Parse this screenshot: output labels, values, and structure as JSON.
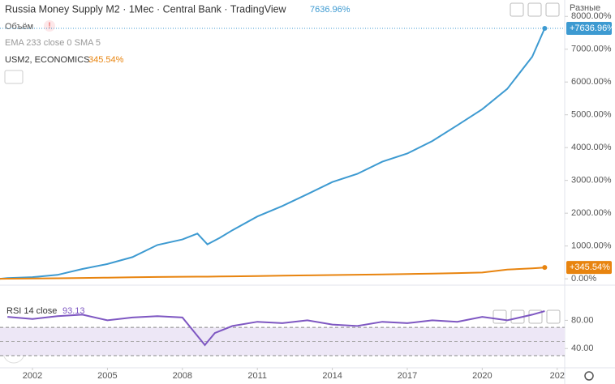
{
  "chart_data": [
    {
      "type": "line",
      "title": "Russia Money Supply M2 · 1Мес · Central Bank · TradingView",
      "header_value": "7636.96%",
      "indicators": [
        "Объём",
        "EMA 233 close 0 SMA 5"
      ],
      "scale_mode": "Разные",
      "x": [
        2000.7,
        2001,
        2002,
        2003,
        2004,
        2005,
        2006,
        2007,
        2008,
        2008.6,
        2009,
        2009.5,
        2010,
        2011,
        2012,
        2013,
        2014,
        2015,
        2016,
        2017,
        2018,
        2019,
        2020,
        2021,
        2022,
        2022.5
      ],
      "series": [
        {
          "name": "Russia Money Supply M2",
          "color": "#3d9ad1",
          "last_label": "+7636.96%",
          "values": [
            0,
            20,
            50,
            120,
            300,
            450,
            660,
            1030,
            1200,
            1380,
            1050,
            1250,
            1480,
            1900,
            2220,
            2580,
            2950,
            3200,
            3570,
            3820,
            4200,
            4680,
            5170,
            5790,
            6770,
            7636.96
          ]
        },
        {
          "name": "USM2, ECONOMICS",
          "color": "#e8840f",
          "legend_value": "345.54%",
          "last_label": "+345.54%",
          "values": [
            0,
            3,
            8,
            15,
            25,
            35,
            45,
            55,
            62,
            65,
            66,
            70,
            75,
            85,
            95,
            105,
            115,
            125,
            135,
            145,
            160,
            175,
            190,
            280,
            320,
            345.54
          ]
        }
      ],
      "xlim": [
        2000.7,
        2023.3
      ],
      "xticks": [
        2002,
        2005,
        2008,
        2011,
        2014,
        2017,
        2020,
        {
          "value": 2023,
          "label": "202"
        }
      ],
      "ylim": [
        -120,
        8500
      ],
      "yticks": [
        {
          "value": 0,
          "label": "0.00%"
        },
        {
          "value": 1000,
          "label": "1000.00%"
        },
        {
          "value": 2000,
          "label": "2000.00%"
        },
        {
          "value": 3000,
          "label": "3000.00%"
        },
        {
          "value": 4000,
          "label": "4000.00%"
        },
        {
          "value": 5000,
          "label": "5000.00%"
        },
        {
          "value": 6000,
          "label": "6000.00%"
        },
        {
          "value": 7000,
          "label": "7000.00%"
        },
        {
          "value": 8000,
          "label": "8000.00%"
        }
      ]
    },
    {
      "type": "line",
      "title": "RSI 14 close",
      "header_value": "93.13",
      "x": [
        2001,
        2002,
        2003,
        2004,
        2005,
        2006,
        2007,
        2008,
        2008.9,
        2009.3,
        2010,
        2011,
        2012,
        2013,
        2014,
        2015,
        2016,
        2017,
        2018,
        2019,
        2020,
        2021,
        2022,
        2022.5
      ],
      "series": [
        {
          "name": "RSI",
          "color": "#7e57c2",
          "values": [
            85,
            82,
            86,
            88,
            80,
            84,
            86,
            84,
            45,
            62,
            72,
            78,
            76,
            80,
            74,
            72,
            78,
            76,
            80,
            78,
            85,
            80,
            88,
            93.13
          ]
        }
      ],
      "band": [
        30,
        70
      ],
      "midline": 50,
      "band_color": "#ede7f6",
      "xlim": [
        2000.7,
        2023.3
      ],
      "ylim": [
        15,
        100
      ],
      "yticks": [
        {
          "value": 40,
          "label": "40.00"
        },
        {
          "value": 80,
          "label": "80.00"
        }
      ]
    }
  ]
}
